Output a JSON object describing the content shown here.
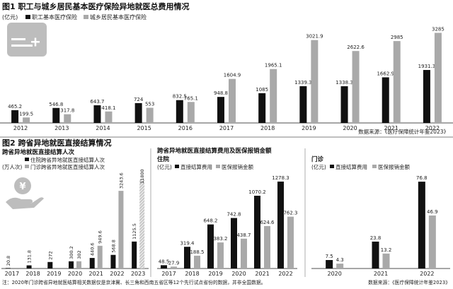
{
  "colors": {
    "black": "#111111",
    "gray": "#a9a9a9",
    "hatch": "#cfcfcf",
    "text": "#222222",
    "icon_bg": "#bdbdbd"
  },
  "icons": {
    "fig1": "card-icon",
    "fig2": "coin-hand-icon"
  },
  "fig1": {
    "title": "图1 职工与城乡居民基本医疗保险异地就医总费用情况",
    "unit": "(亿元)",
    "legend": [
      "职工基本医疗保险",
      "城乡居民基本医疗保险"
    ],
    "source": "数据来源：《医疗保障统计年鉴2023》",
    "chart_data": {
      "type": "bar",
      "categories": [
        "2012",
        "2013",
        "2014",
        "2015",
        "2016",
        "2017",
        "2018",
        "2019",
        "2020",
        "2021",
        "2022"
      ],
      "series": [
        {
          "name": "职工基本医疗保险",
          "values": [
            465.2,
            546.8,
            643.7,
            724,
            832.5,
            948.8,
            1085,
            1339.3,
            1338.3,
            1662.9,
            1931.3
          ]
        },
        {
          "name": "城乡居民基本医疗保险",
          "values": [
            199.5,
            317.8,
            418.1,
            553,
            765.1,
            1604.9,
            1965.1,
            3021.9,
            2622.6,
            2985,
            3285
          ]
        }
      ],
      "labels": {
        "职工基本医疗保险": [
          "465.2",
          "546.8",
          "643.7",
          "724",
          "832.5",
          "948.8",
          "1085",
          "1339.3",
          "1338.3",
          "1662.9",
          "1931.3"
        ],
        "城乡居民基本医疗保险": [
          "199.5",
          "317.8",
          "418.1",
          "553",
          "765.1",
          "1604.9",
          "1965.1",
          "3021.9",
          "2622.6",
          "2985",
          "3285"
        ]
      },
      "ylim": [
        0,
        3400
      ],
      "grid": false,
      "legend_position": "top-left"
    }
  },
  "fig2": {
    "title": "图2 跨省异地就医直接结算情况",
    "footnote": "注：2020年门诊跨省异地就医结算相关数据仅是京津冀、长三角和西南五省区等12个先行试点省份的数据，并非全国数据。",
    "source": "数据来源：《医疗保障统计年鉴2023》",
    "panels": [
      {
        "title": "跨省异地就医直接结算人次",
        "unit": "(万人次)",
        "legend": [
          "住院跨省异地就医直接结算人次",
          "门诊跨省异地就医直接结算人次"
        ],
        "chart_data": {
          "type": "bar",
          "categories": [
            "2017",
            "2018",
            "2019",
            "2020",
            "2021",
            "2022",
            "2023"
          ],
          "series": [
            {
              "name": "住院跨省异地就医直接结算人次",
              "values": [
                20.8,
                131.8,
                272,
                300.2,
                440.6,
                568.8,
                1125.5
              ]
            },
            {
              "name": "门诊跨省异地就医直接结算人次",
              "values": [
                null,
                null,
                null,
                302,
                949.6,
                3243.6,
                11800
              ]
            }
          ],
          "labels": {
            "住院跨省异地就医直接结算人次": [
              "20.8",
              "131.8",
              "272",
              "300.2",
              "440.6",
              "568.8",
              "1125.5"
            ],
            "门诊跨省异地就医直接结算人次": [
              "",
              "",
              "",
              "302",
              "949.6",
              "3243.6",
              "11800"
            ]
          },
          "axis_break": true,
          "ylim": [
            0,
            3600
          ],
          "grid": false,
          "legend_position": "top-left"
        }
      },
      {
        "title": "跨省异地就医直接结算费用及医保报销金额",
        "subtitle": "住院",
        "unit": "(亿元)",
        "legend": [
          "直接结算费用",
          "医保报销金额"
        ],
        "chart_data": {
          "type": "bar",
          "categories": [
            "2017",
            "2018",
            "2019",
            "2020",
            "2021",
            "2022"
          ],
          "series": [
            {
              "name": "直接结算费用",
              "values": [
                48.5,
                319.4,
                648.2,
                742.8,
                1070.2,
                1278.3
              ]
            },
            {
              "name": "医保报销金额",
              "values": [
                27.9,
                188.5,
                383.2,
                438.7,
                624.6,
                762.3
              ]
            }
          ],
          "labels": {
            "直接结算费用": [
              "48.5",
              "319.4",
              "648.2",
              "742.8",
              "1070.2",
              "1278.3"
            ],
            "医保报销金额": [
              "27.9",
              "188.5",
              "383.2",
              "438.7",
              "624.6",
              "762.3"
            ]
          },
          "ylim": [
            0,
            1330
          ],
          "grid": false,
          "legend_position": "top-left"
        }
      },
      {
        "title": "门诊",
        "unit": "(亿元)",
        "legend": [
          "直接结算费用",
          "医保报销金额"
        ],
        "chart_data": {
          "type": "bar",
          "categories": [
            "2020",
            "2021",
            "2022"
          ],
          "series": [
            {
              "name": "直接结算费用",
              "values": [
                7.5,
                23.8,
                76.8
              ]
            },
            {
              "name": "医保报销金额",
              "values": [
                4.3,
                13.2,
                46.9
              ]
            }
          ],
          "labels": {
            "直接结算费用": [
              "7.5",
              "23.8",
              "76.8"
            ],
            "医保报销金额": [
              "4.3",
              "13.2",
              "46.9"
            ]
          },
          "ylim": [
            0,
            80
          ],
          "grid": false,
          "legend_position": "top-left"
        }
      }
    ]
  }
}
